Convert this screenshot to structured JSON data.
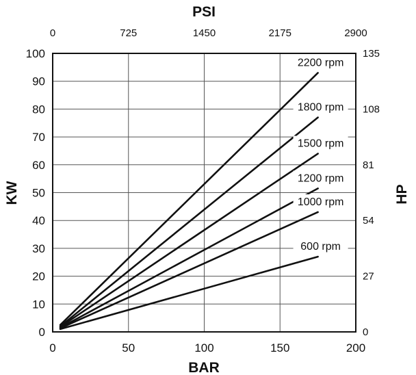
{
  "chart_data": {
    "type": "line",
    "x_axis_bottom": {
      "label": "BAR",
      "ticks": [
        "0",
        "50",
        "100",
        "150",
        "200"
      ],
      "range": [
        0,
        200
      ]
    },
    "x_axis_top": {
      "label": "PSI",
      "ticks": [
        "0",
        "725",
        "1450",
        "2175",
        "2900"
      ],
      "range": [
        0,
        2900
      ]
    },
    "y_axis_left": {
      "label": "KW",
      "ticks": [
        "0",
        "10",
        "20",
        "30",
        "40",
        "50",
        "60",
        "70",
        "80",
        "90",
        "100"
      ],
      "range": [
        0,
        100
      ]
    },
    "y_axis_right": {
      "label": "HP",
      "ticks": [
        "0",
        "27",
        "54",
        "81",
        "108",
        "135"
      ],
      "range": [
        0,
        135
      ]
    },
    "grid": true,
    "series": [
      {
        "name": "2200 rpm",
        "x": [
          5,
          175
        ],
        "y": [
          2.5,
          93
        ]
      },
      {
        "name": "1800 rpm",
        "x": [
          5,
          175
        ],
        "y": [
          2.0,
          77
        ]
      },
      {
        "name": "1500 rpm",
        "x": [
          5,
          175
        ],
        "y": [
          1.8,
          64
        ]
      },
      {
        "name": "1200 rpm",
        "x": [
          5,
          175
        ],
        "y": [
          1.5,
          51.5
        ]
      },
      {
        "name": "1000 rpm",
        "x": [
          5,
          175
        ],
        "y": [
          1.3,
          43
        ]
      },
      {
        "name": "600 rpm",
        "x": [
          5,
          175
        ],
        "y": [
          1.0,
          27
        ]
      }
    ]
  }
}
